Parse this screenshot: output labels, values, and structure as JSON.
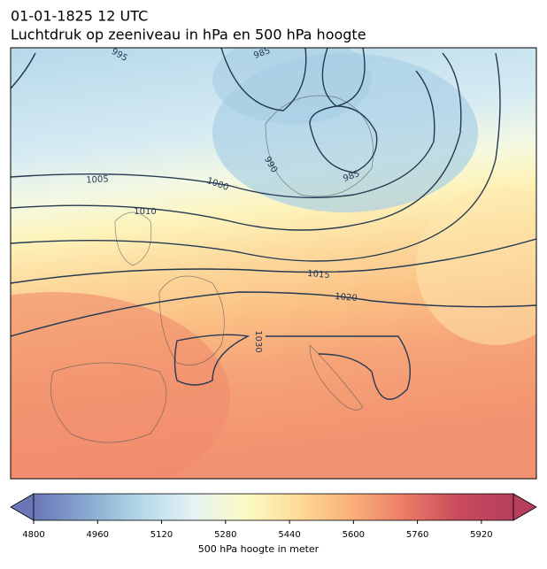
{
  "title": "01-01-1825 12 UTC",
  "subtitle": "Luchtdruk op zeeniveau in hPa en 500 hPa hoogte",
  "contour_labels": [
    995,
    985,
    990,
    985,
    1005,
    1000,
    1010,
    1015,
    1020,
    1030
  ],
  "colorbar": {
    "label": "500 hPa hoogte in meter",
    "lim": [
      4800,
      6000
    ],
    "ticks": [
      4800,
      4960,
      5120,
      5280,
      5440,
      5600,
      5760,
      5920
    ],
    "colors": [
      "#6a76b6",
      "#87a9d0",
      "#b4d8e8",
      "#e4f3f4",
      "#fdfac4",
      "#fed998",
      "#f9ae79",
      "#ea7a66",
      "#c84a5c",
      "#b53f5d"
    ]
  }
}
